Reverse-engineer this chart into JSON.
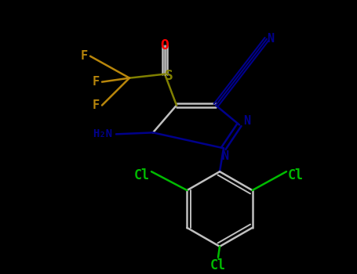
{
  "background_color": "#000000",
  "text_color_map": {
    "F": "#B8860B",
    "S": "#808000",
    "O": "#FF0000",
    "N": "#00008B",
    "Cl": "#00BB00",
    "white": "#C0C0C0"
  },
  "figsize": [
    4.55,
    3.5
  ],
  "dpi": 100
}
